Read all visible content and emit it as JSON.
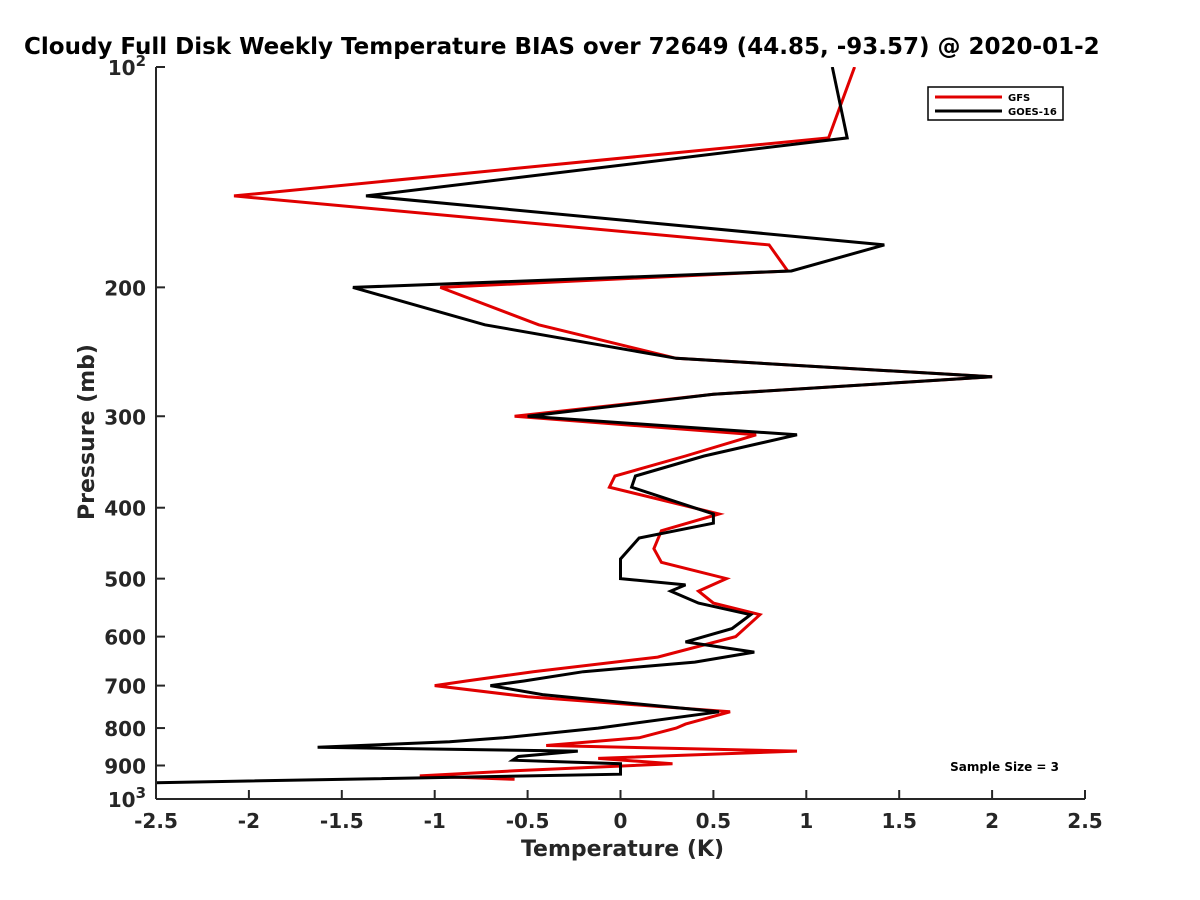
{
  "chart_data": {
    "type": "line",
    "title": "Cloudy Full Disk Weekly Temperature BIAS over 72649 (44.85, -93.57) @ 2020-01-2",
    "xlabel": "Temperature (K)",
    "ylabel": "Pressure (mb)",
    "xlim": [
      -2.5,
      2.5
    ],
    "ylim": [
      100,
      1000
    ],
    "yscale": "log",
    "y_reversed": true,
    "x_ticks": [
      -2.5,
      -2,
      -1.5,
      -1,
      -0.5,
      0,
      0.5,
      1,
      1.5,
      2,
      2.5
    ],
    "x_tick_labels": [
      "-2.5",
      "-2",
      "-1.5",
      "-1",
      "-0.5",
      "0",
      "0.5",
      "1",
      "1.5",
      "2",
      "2.5"
    ],
    "y_ticks": [
      100,
      200,
      300,
      400,
      500,
      600,
      700,
      800,
      900,
      1000
    ],
    "y_tick_labels": [
      {
        "base": "10",
        "exp": "2"
      },
      {
        "base": "200",
        "exp": ""
      },
      {
        "base": "300",
        "exp": ""
      },
      {
        "base": "400",
        "exp": ""
      },
      {
        "base": "500",
        "exp": ""
      },
      {
        "base": "600",
        "exp": ""
      },
      {
        "base": "700",
        "exp": ""
      },
      {
        "base": "800",
        "exp": ""
      },
      {
        "base": "900",
        "exp": ""
      },
      {
        "base": "10",
        "exp": "3"
      }
    ],
    "legend_position": "top-right",
    "grid": false,
    "series": [
      {
        "name": "GFS",
        "color": "#e00000",
        "points": [
          [
            1.26,
            100
          ],
          [
            1.12,
            125
          ],
          [
            -2.08,
            150
          ],
          [
            0.8,
            175
          ],
          [
            0.9,
            190
          ],
          [
            -0.97,
            200
          ],
          [
            -0.44,
            225
          ],
          [
            0.3,
            250
          ],
          [
            2.0,
            265
          ],
          [
            0.5,
            280
          ],
          [
            -0.57,
            300
          ],
          [
            0.73,
            318
          ],
          [
            0.35,
            340
          ],
          [
            -0.03,
            362
          ],
          [
            -0.06,
            375
          ],
          [
            0.53,
            408
          ],
          [
            0.22,
            430
          ],
          [
            0.18,
            455
          ],
          [
            0.22,
            475
          ],
          [
            0.57,
            500
          ],
          [
            0.42,
            520
          ],
          [
            0.5,
            540
          ],
          [
            0.75,
            560
          ],
          [
            0.62,
            600
          ],
          [
            0.2,
            640
          ],
          [
            -0.47,
            670
          ],
          [
            -0.83,
            690
          ],
          [
            -1.0,
            700
          ],
          [
            -0.5,
            725
          ],
          [
            0.59,
            760
          ],
          [
            0.35,
            790
          ],
          [
            0.3,
            800
          ],
          [
            0.1,
            825
          ],
          [
            -0.4,
            845
          ],
          [
            0.95,
            860
          ],
          [
            -0.12,
            880
          ],
          [
            0.28,
            895
          ],
          [
            -0.57,
            915
          ],
          [
            -1.08,
            930
          ],
          [
            -0.57,
            940
          ]
        ]
      },
      {
        "name": "GOES-16",
        "color": "#000000",
        "points": [
          [
            1.14,
            100
          ],
          [
            1.22,
            125
          ],
          [
            -1.37,
            150
          ],
          [
            1.42,
            175
          ],
          [
            0.92,
            190
          ],
          [
            -1.44,
            200
          ],
          [
            -0.73,
            225
          ],
          [
            0.3,
            250
          ],
          [
            2.0,
            265
          ],
          [
            0.5,
            280
          ],
          [
            -0.5,
            300
          ],
          [
            0.95,
            318
          ],
          [
            0.45,
            340
          ],
          [
            0.08,
            362
          ],
          [
            0.06,
            375
          ],
          [
            0.5,
            408
          ],
          [
            0.5,
            420
          ],
          [
            0.1,
            440
          ],
          [
            0.0,
            470
          ],
          [
            0.0,
            500
          ],
          [
            0.35,
            510
          ],
          [
            0.27,
            520
          ],
          [
            0.42,
            540
          ],
          [
            0.7,
            560
          ],
          [
            0.6,
            585
          ],
          [
            0.35,
            610
          ],
          [
            0.72,
            630
          ],
          [
            0.4,
            650
          ],
          [
            -0.2,
            670
          ],
          [
            -0.52,
            690
          ],
          [
            -0.7,
            700
          ],
          [
            -0.42,
            720
          ],
          [
            0.53,
            760
          ],
          [
            -0.12,
            800
          ],
          [
            -0.63,
            825
          ],
          [
            -0.92,
            835
          ],
          [
            -1.63,
            850
          ],
          [
            -0.23,
            860
          ],
          [
            -0.55,
            875
          ],
          [
            -0.58,
            885
          ],
          [
            0.0,
            895
          ],
          [
            0.0,
            925
          ],
          [
            -2.5,
            950
          ]
        ]
      }
    ],
    "annotations": [
      {
        "text": "Sample Size = 3"
      }
    ]
  }
}
